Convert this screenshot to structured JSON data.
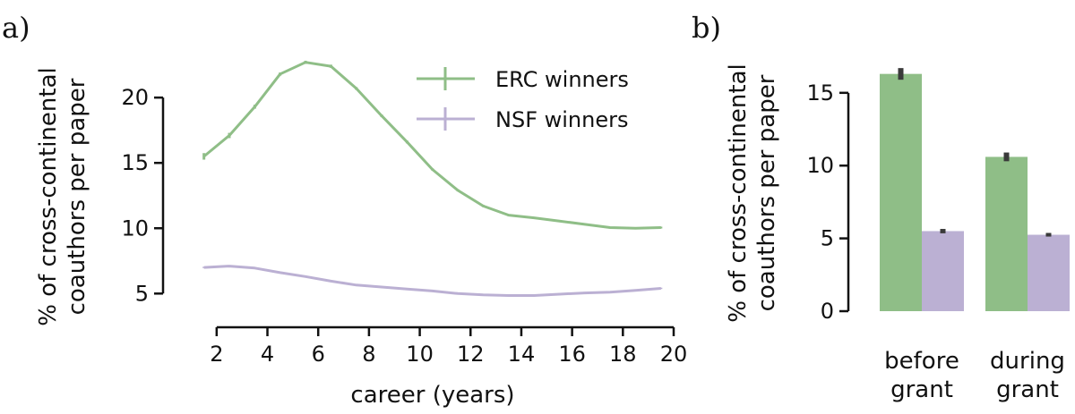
{
  "panels": {
    "a": "a)",
    "b": "b)"
  },
  "colors": {
    "erc": "#8fbe87",
    "nsf": "#bbb0d3",
    "errbar": "#3a3a3a"
  },
  "chart_data": [
    {
      "type": "line",
      "xlabel": "career (years)",
      "ylabel_lines": [
        "% of cross-continental",
        "coauthors per paper"
      ],
      "xlim": [
        1.3,
        20
      ],
      "ylim": [
        4.2,
        23.5
      ],
      "xticks": [
        2,
        4,
        6,
        8,
        10,
        12,
        14,
        16,
        18,
        20
      ],
      "yticks": [
        5,
        10,
        15,
        20
      ],
      "legend": "top-right",
      "series": [
        {
          "name": "ERC winners",
          "color": "#8fbe87",
          "x": [
            1.5,
            2.5,
            3.5,
            4.5,
            5.5,
            6.5,
            7.5,
            8.5,
            9.5,
            10.5,
            11.5,
            12.5,
            13.5,
            14.5,
            15.5,
            16.5,
            17.5,
            18.5,
            19.5
          ],
          "y": [
            15.5,
            17.1,
            19.3,
            21.8,
            22.7,
            22.4,
            20.7,
            18.6,
            16.6,
            14.5,
            12.9,
            11.7,
            11.0,
            10.8,
            10.55,
            10.3,
            10.05,
            10.0,
            10.05
          ],
          "err": [
            0.25,
            0.2,
            0.15,
            0.12,
            0.12,
            0.12,
            0.1,
            0.1,
            0.1,
            0.08,
            0.08,
            0.08,
            0.07,
            0.07,
            0.07,
            0.07,
            0.07,
            0.07,
            0.07
          ]
        },
        {
          "name": "NSF winners",
          "color": "#bbb0d3",
          "x": [
            1.5,
            2.5,
            3.5,
            4.5,
            5.5,
            6.5,
            7.5,
            8.5,
            9.5,
            10.5,
            11.5,
            12.5,
            13.5,
            14.5,
            15.5,
            16.5,
            17.5,
            18.5,
            19.5
          ],
          "y": [
            7.0,
            7.1,
            6.95,
            6.6,
            6.3,
            5.95,
            5.65,
            5.5,
            5.35,
            5.2,
            5.0,
            4.9,
            4.85,
            4.85,
            4.95,
            5.05,
            5.1,
            5.25,
            5.4
          ],
          "err": [
            0.05,
            0.05,
            0.05,
            0.05,
            0.05,
            0.05,
            0.05,
            0.05,
            0.05,
            0.05,
            0.05,
            0.05,
            0.05,
            0.05,
            0.05,
            0.05,
            0.05,
            0.05,
            0.05
          ]
        }
      ]
    },
    {
      "type": "bar",
      "ylabel_lines": [
        "% of cross-continental",
        "coauthors per paper"
      ],
      "ylim": [
        0,
        17.2
      ],
      "yticks": [
        0,
        5,
        10,
        15
      ],
      "categories": [
        [
          "before",
          "grant"
        ],
        [
          "during",
          "grant"
        ]
      ],
      "series": [
        {
          "name": "ERC winners",
          "color": "#8fbe87",
          "values": [
            16.3,
            10.6
          ],
          "err": [
            0.8,
            0.6
          ]
        },
        {
          "name": "NSF winners",
          "color": "#bbb0d3",
          "values": [
            5.5,
            5.25
          ],
          "err": [
            0.3,
            0.25
          ]
        }
      ]
    }
  ]
}
